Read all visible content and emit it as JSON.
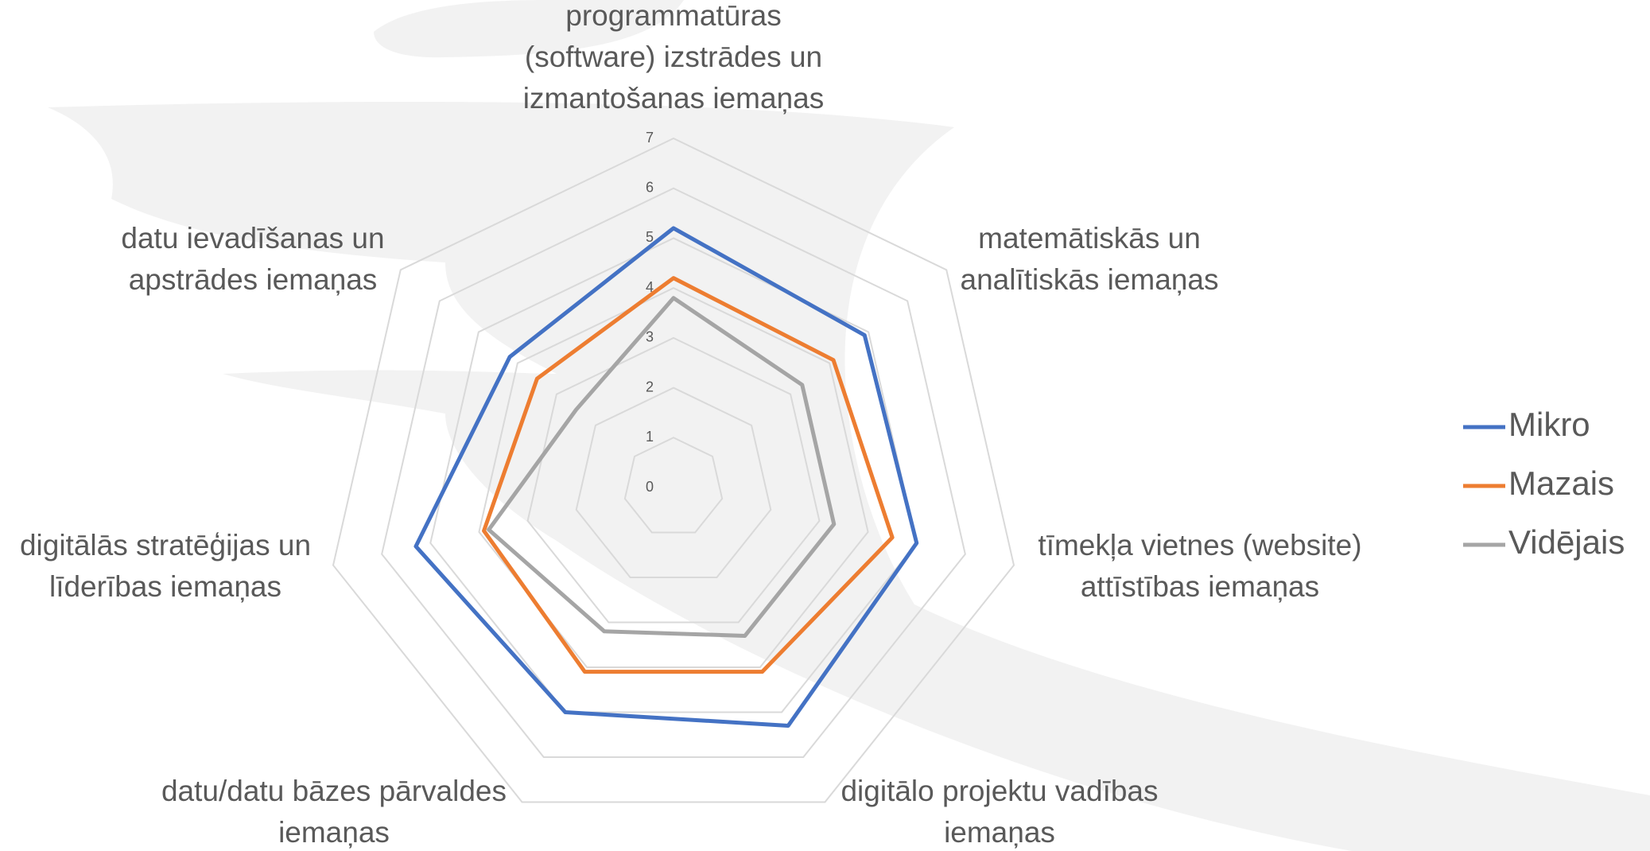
{
  "chart_data": {
    "type": "radar",
    "categories": [
      [
        "programmatūras",
        "(software) izstrādes un",
        "izmantošanas iemaņas"
      ],
      [
        "matemātiskās un",
        "analītiskās iemaņas"
      ],
      [
        "tīmekļa vietnes (website)",
        "attīstības iemaņas"
      ],
      [
        "digitālo projektu vadības",
        "iemaņas"
      ],
      [
        "datu/datu bāzes pārvaldes",
        "iemaņas"
      ],
      [
        "digitālās stratēģijas un",
        "līderības iemaņas"
      ],
      [
        "datu ievadīšanas un",
        "apstrādes iemaņas"
      ]
    ],
    "series": [
      {
        "name": "Mikro",
        "color": "#4472c4",
        "values": [
          5.2,
          4.9,
          5.0,
          5.3,
          5.0,
          5.3,
          4.2
        ]
      },
      {
        "name": "Mazais",
        "color": "#ed7d31",
        "values": [
          4.2,
          4.1,
          4.5,
          4.1,
          4.1,
          3.9,
          3.5
        ]
      },
      {
        "name": "Vidējais",
        "color": "#a5a5a5",
        "values": [
          3.8,
          3.3,
          3.3,
          3.3,
          3.2,
          3.8,
          2.5
        ]
      }
    ],
    "rlim": [
      0,
      7
    ],
    "rticks": [
      0,
      1,
      2,
      3,
      4,
      5,
      6,
      7
    ],
    "grid": true,
    "legend": "right"
  }
}
